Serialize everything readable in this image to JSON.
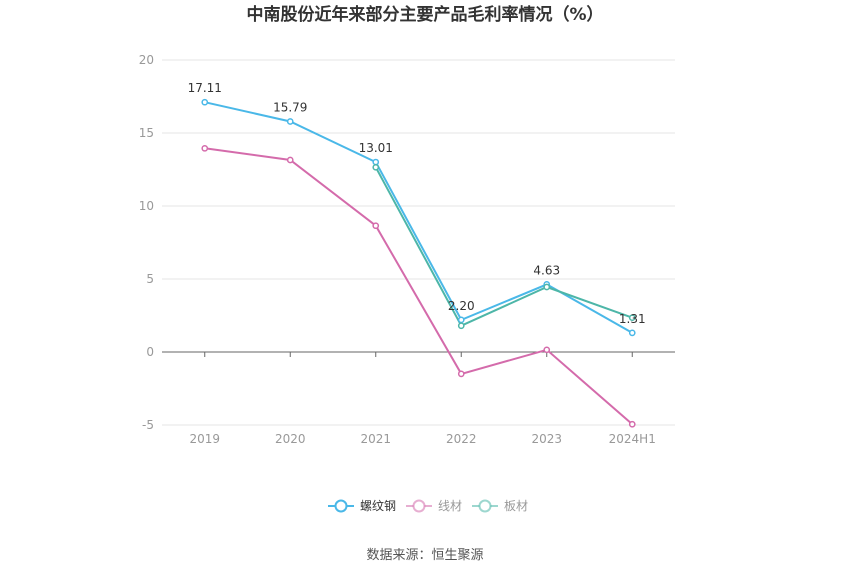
{
  "chart_data": {
    "type": "line",
    "title": "中南股份近年来部分主要产品毛利率情况（%）",
    "categories": [
      "2019",
      "2020",
      "2021",
      "2022",
      "2023",
      "2024H1"
    ],
    "ylim": [
      -5,
      20
    ],
    "yticks": [
      "20",
      "15",
      "10",
      "5",
      "0",
      "-5"
    ],
    "series": [
      {
        "name": "螺纹钢",
        "color": "#4ab8e8",
        "values": [
          17.11,
          15.79,
          13.01,
          2.2,
          4.63,
          1.31
        ],
        "labels": [
          "17.11",
          "15.79",
          "13.01",
          "2.20",
          "4.63",
          "1.31"
        ]
      },
      {
        "name": "线材",
        "color": "#d46bab",
        "values": [
          13.95,
          13.15,
          8.65,
          -1.5,
          0.15,
          -4.95
        ]
      },
      {
        "name": "板材",
        "color": "#4db6a8",
        "values": [
          null,
          null,
          12.65,
          1.8,
          4.45,
          2.35
        ]
      }
    ],
    "source": "数据来源：恒生聚源"
  }
}
